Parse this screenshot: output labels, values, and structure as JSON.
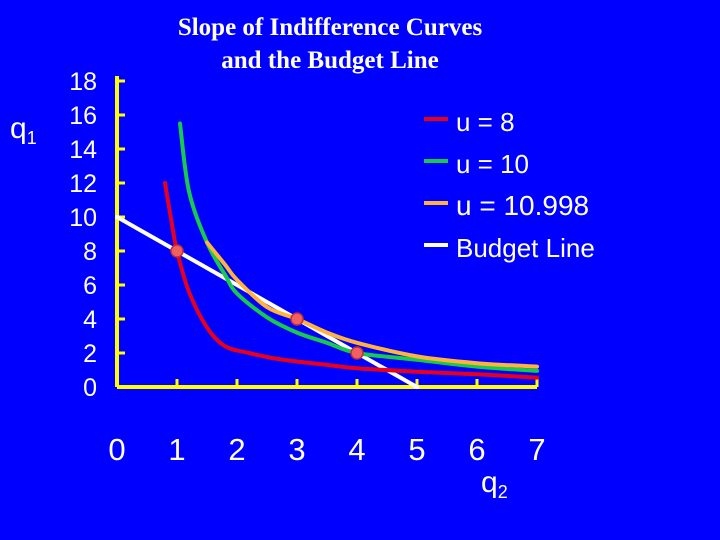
{
  "chart_data": {
    "type": "line",
    "title": [
      "Slope of Indifference Curves",
      "and the Budget Line"
    ],
    "xlabel": "q",
    "xlabel_sub": "2",
    "ylabel": "q",
    "ylabel_sub": "1",
    "xlim": [
      0,
      7
    ],
    "ylim": [
      0,
      18
    ],
    "xticks": [
      0,
      1,
      2,
      3,
      4,
      5,
      6,
      7
    ],
    "yticks": [
      0,
      2,
      4,
      6,
      8,
      10,
      12,
      14,
      16,
      18
    ],
    "grid": false,
    "legend_position": "top-right",
    "axis_color": "#FFFF00",
    "text_color": "#FFFFFF",
    "background": "#0000FF",
    "series": [
      {
        "name": "u = 8",
        "color": "#E8001A",
        "points": [
          [
            0.8,
            12
          ],
          [
            0.9,
            9.9
          ],
          [
            1,
            8
          ],
          [
            1.2,
            5.6
          ],
          [
            1.5,
            3.5
          ],
          [
            1.8,
            2.4
          ],
          [
            2.2,
            2
          ],
          [
            2.6,
            1.7
          ],
          [
            3,
            1.5
          ],
          [
            3.5,
            1.3
          ],
          [
            4,
            1.1
          ],
          [
            5,
            0.9
          ],
          [
            6,
            0.75
          ],
          [
            7,
            0.55
          ]
        ]
      },
      {
        "name": "u = 10",
        "color": "#19C94B",
        "points": [
          [
            1.05,
            15.5
          ],
          [
            1.2,
            11.5
          ],
          [
            1.5,
            8.5
          ],
          [
            1.8,
            6.6
          ],
          [
            2,
            5.5
          ],
          [
            2.5,
            4.1
          ],
          [
            3,
            3.2
          ],
          [
            3.5,
            2.6
          ],
          [
            4,
            2
          ],
          [
            5,
            1.6
          ],
          [
            6,
            1.2
          ],
          [
            7,
            0.95
          ]
        ]
      },
      {
        "name": "u = 10.998",
        "color": "#FFB23C",
        "points": [
          [
            1.5,
            8.5
          ],
          [
            1.8,
            7.2
          ],
          [
            2,
            6.3
          ],
          [
            2.5,
            4.7
          ],
          [
            3,
            4
          ],
          [
            3.5,
            3.2
          ],
          [
            4,
            2.6
          ],
          [
            5,
            1.8
          ],
          [
            6,
            1.4
          ],
          [
            7,
            1.2
          ]
        ]
      },
      {
        "name": "Budget Line",
        "color": "#FFFFFF",
        "points": [
          [
            0,
            10
          ],
          [
            5,
            0
          ]
        ]
      }
    ],
    "markers": [
      {
        "x": 1,
        "y": 8
      },
      {
        "x": 3,
        "y": 4
      },
      {
        "x": 4,
        "y": 2
      }
    ],
    "marker_color": "#F06060"
  }
}
